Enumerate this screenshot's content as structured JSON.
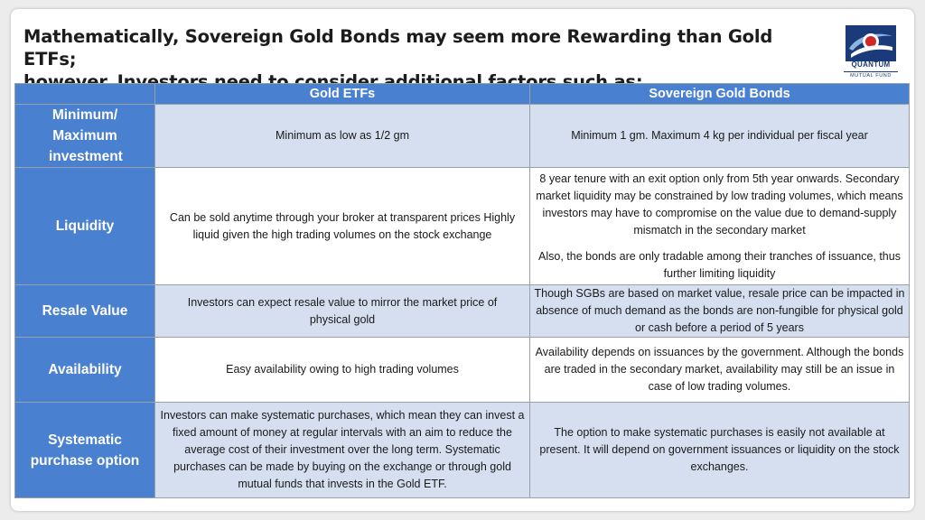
{
  "title": {
    "line1": "Mathematically, Sovereign Gold Bonds may seem more Rewarding than Gold ETFs;",
    "line2": "however, Investors need to consider additional factors such as:"
  },
  "logo": {
    "name": "QUANTUM",
    "subtitle": "MUTUAL FUND",
    "colors": {
      "blue": "#1a3a7a",
      "red": "#d0262c",
      "light_blue": "#8fb4e0"
    }
  },
  "colors": {
    "header_bg": "#4a80d0",
    "band_bg": "#d5dff0",
    "border": "#9aa0a8"
  },
  "table": {
    "headers": [
      "",
      "Gold ETFs",
      "Sovereign Gold Bonds"
    ],
    "rows": [
      {
        "label": "Minimum/ Maximum investment",
        "gold_etfs": "Minimum as low as 1/2 gm",
        "sgb": [
          "Minimum 1 gm. Maximum 4 kg per individual per fiscal year"
        ]
      },
      {
        "label": "Liquidity",
        "gold_etfs": "Can be sold anytime through your broker at transparent prices Highly liquid given the high trading volumes on the stock exchange",
        "sgb": [
          "8 year tenure with an exit option only from 5th year onwards. Secondary market liquidity may be constrained by low trading volumes, which means investors may have to compromise on the value due to demand-supply mismatch in the secondary market",
          "Also, the bonds are only tradable among their tranches of issuance, thus further limiting liquidity"
        ]
      },
      {
        "label": "Resale Value",
        "gold_etfs": "Investors can expect resale value to mirror the market price of physical gold",
        "sgb": [
          "Though SGBs are based on market value, resale price can be impacted in absence of much demand as the bonds are non-fungible for physical gold or cash before a period of 5 years"
        ]
      },
      {
        "label": "Availability",
        "gold_etfs": "Easy availability owing to high trading volumes",
        "sgb": [
          "Availability depends on issuances by the government. Although the bonds are traded in the secondary market, availability may still be an issue in case of low trading volumes."
        ]
      },
      {
        "label": "Systematic purchase option",
        "gold_etfs": "Investors can make systematic purchases, which mean they can invest a fixed amount of money at regular intervals with an aim to reduce the average cost of their investment over the long term. Systematic purchases can be made by buying on the exchange or through gold mutual funds that invests in the Gold ETF.",
        "sgb": [
          "The option to make systematic purchases is easily not available at present. It will depend on government issuances or liquidity on the stock exchanges."
        ]
      }
    ]
  }
}
